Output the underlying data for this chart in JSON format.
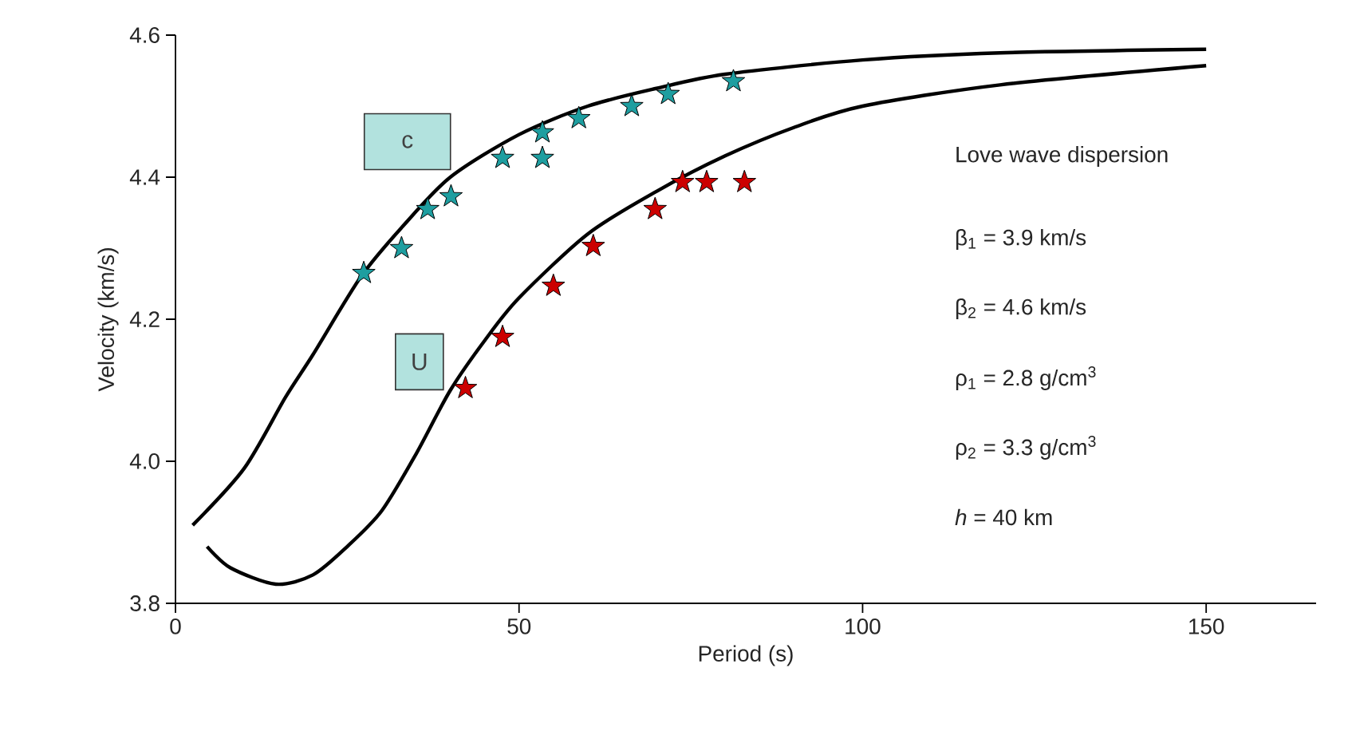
{
  "chart_data": {
    "type": "line",
    "xlabel": "Period (s)",
    "ylabel": "Velocity (km/s)",
    "xlim": [
      0,
      166
    ],
    "ylim": [
      3.8,
      4.6
    ],
    "xticks": [
      0,
      50,
      100,
      150
    ],
    "yticks": [
      {
        "value": 3.8,
        "label": "3.8"
      },
      {
        "value": 4.0,
        "label": "4.0"
      },
      {
        "value": 4.2,
        "label": "4.2"
      },
      {
        "value": 4.4,
        "label": "4.4"
      },
      {
        "value": 4.6,
        "label": "4.6"
      }
    ],
    "grid": false,
    "legend": false,
    "series": [
      {
        "name": "c",
        "color": "#000000",
        "x": [
          2.5,
          10,
          16,
          20,
          27,
          33,
          40,
          50,
          60,
          70,
          80,
          100,
          120,
          150
        ],
        "values": [
          3.91,
          3.99,
          4.09,
          4.15,
          4.26,
          4.33,
          4.4,
          4.46,
          4.5,
          4.525,
          4.545,
          4.565,
          4.575,
          4.58
        ]
      },
      {
        "name": "U",
        "color": "#000000",
        "x": [
          4.6,
          8,
          14.6,
          20,
          25,
          30,
          35,
          40,
          45,
          50,
          60,
          70,
          80,
          90,
          100,
          120,
          150
        ],
        "values": [
          3.88,
          3.85,
          3.827,
          3.84,
          3.88,
          3.93,
          4.01,
          4.1,
          4.17,
          4.23,
          4.32,
          4.38,
          4.43,
          4.47,
          4.5,
          4.53,
          4.557
        ]
      },
      {
        "type": "scatter",
        "marker": "star",
        "color": "#1e9ea0",
        "x": [
          27.4,
          32.9,
          36.7,
          40.1,
          47.6,
          53.4,
          53.4,
          58.7,
          66.4,
          71.7,
          81.2
        ],
        "values": [
          4.265,
          4.3,
          4.355,
          4.373,
          4.427,
          4.427,
          4.463,
          4.483,
          4.5,
          4.517,
          4.535
        ]
      },
      {
        "type": "scatter",
        "marker": "star",
        "color": "#cc0000",
        "x": [
          42.2,
          47.6,
          55.0,
          60.8,
          69.8,
          73.8,
          77.3,
          82.8
        ],
        "values": [
          4.103,
          4.175,
          4.247,
          4.303,
          4.355,
          4.393,
          4.393,
          4.393
        ]
      }
    ],
    "annotations": [
      "Love wave dispersion",
      "β$_{1}$ = 3.9 km/s",
      "β$_{2}$ = 4.6 km/s",
      "ρ$_{1}$ = 2.8 g/cm$^{3}$",
      "ρ$_{2}$ = 3.3 g/cm$^{3}$",
      "*h* = 40 km"
    ]
  }
}
